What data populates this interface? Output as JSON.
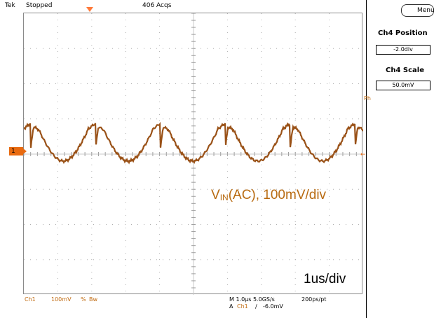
{
  "top_bar": {
    "brand": "Tek",
    "state": "Stopped",
    "acquisitions": "406 Acqs"
  },
  "overlay": {
    "signal_prefix": "V",
    "signal_sub": "IN",
    "signal_suffix": "(AC), 100mV/div",
    "timebase": "1us/div"
  },
  "channel_marker": "1",
  "bottom_status": {
    "channel": "Ch1",
    "scale": "100mV",
    "bw_symbol": "%",
    "bw": "Bw",
    "horizontal": "M 1.0µs 5.0GS/s",
    "resolution": "200ps/pt",
    "trigger_prefix": "A",
    "trigger_source": "Ch1",
    "trigger_slope": "∕",
    "trigger_level": "-6.0mV"
  },
  "side_panel": {
    "menu_label": "Menu",
    "position_title": "Ch4 Position",
    "position_value": "-2.0div",
    "scale_title": "Ch4 Scale",
    "scale_value": "50.0mV",
    "ph_text": "Ph",
    "arrow": "←"
  },
  "colors": {
    "trace": "#9a5218",
    "marker": "#e86a10",
    "grid_dots": "#b0b0b0"
  }
}
